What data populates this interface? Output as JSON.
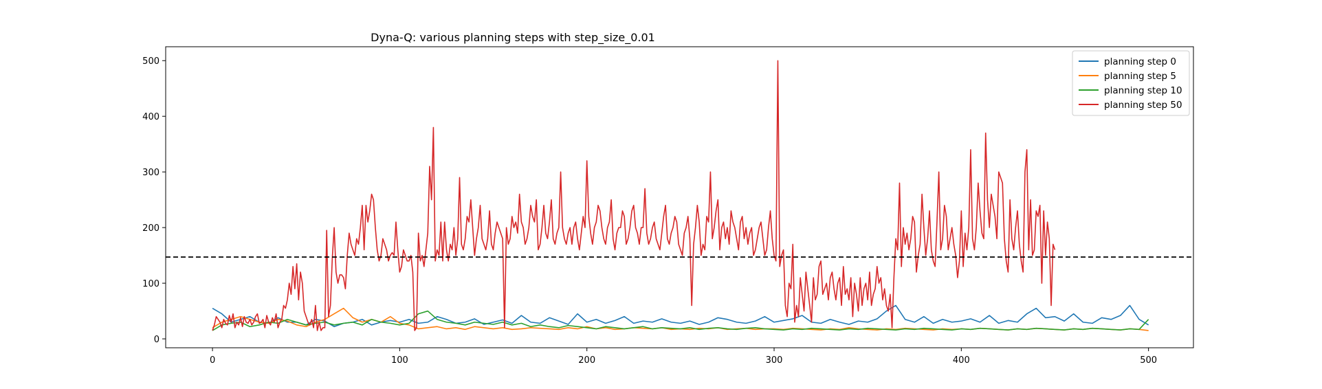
{
  "chart_data": {
    "type": "line",
    "title": "Dyna-Q: various planning steps with step_size_0.01",
    "xlabel": "",
    "ylabel": "",
    "xlim": [
      -25,
      524
    ],
    "ylim": [
      -16,
      525
    ],
    "x_ticks": [
      0,
      100,
      200,
      300,
      400,
      500
    ],
    "y_ticks": [
      0,
      100,
      200,
      300,
      400,
      500
    ],
    "grid": false,
    "legend_position": "top-right",
    "reference_line": {
      "y": 147,
      "style": "dashed",
      "color": "#000000"
    },
    "series": [
      {
        "name": "planning step 0",
        "color": "#1f77b4",
        "x_start": 0,
        "x_step": 5,
        "values": [
          55,
          45,
          30,
          35,
          40,
          30,
          28,
          38,
          30,
          30,
          25,
          35,
          32,
          22,
          28,
          30,
          35,
          25,
          30,
          33,
          30,
          35,
          28,
          30,
          40,
          35,
          28,
          30,
          36,
          26,
          30,
          34,
          28,
          42,
          30,
          28,
          38,
          32,
          26,
          45,
          30,
          35,
          28,
          33,
          40,
          28,
          32,
          30,
          36,
          30,
          28,
          32,
          26,
          30,
          38,
          35,
          30,
          28,
          32,
          40,
          30,
          33,
          36,
          42,
          30,
          28,
          35,
          30,
          26,
          32,
          30,
          36,
          50,
          60,
          35,
          30,
          40,
          28,
          35,
          30,
          32,
          36,
          30,
          42,
          28,
          33,
          30,
          45,
          55,
          38,
          40,
          32,
          45,
          30,
          28,
          38,
          35,
          42,
          60,
          35,
          25
        ]
      },
      {
        "name": "planning step 5",
        "color": "#ff7f0e",
        "x_start": 0,
        "x_step": 5,
        "values": [
          20,
          30,
          35,
          40,
          35,
          30,
          28,
          35,
          32,
          25,
          22,
          30,
          35,
          45,
          55,
          38,
          30,
          35,
          30,
          40,
          28,
          25,
          18,
          20,
          22,
          18,
          20,
          17,
          22,
          20,
          18,
          20,
          17,
          18,
          20,
          19,
          18,
          17,
          20,
          18,
          22,
          18,
          20,
          17,
          18,
          20,
          19,
          18,
          20,
          17,
          18,
          17,
          19,
          18,
          20,
          17,
          18,
          19,
          17,
          18,
          18,
          17,
          19,
          18,
          17,
          16,
          18,
          17,
          20,
          18,
          17,
          16,
          18,
          17,
          19,
          18,
          17,
          16,
          18,
          17,
          18,
          17,
          19,
          18,
          17,
          16,
          18,
          17,
          19,
          18,
          17,
          16,
          18,
          17,
          19,
          18,
          17,
          16,
          18,
          17,
          15
        ]
      },
      {
        "name": "planning step 10",
        "color": "#2ca02c",
        "x_start": 0,
        "x_step": 5,
        "values": [
          15,
          25,
          28,
          30,
          22,
          25,
          30,
          28,
          35,
          30,
          25,
          28,
          30,
          25,
          28,
          30,
          25,
          35,
          30,
          28,
          25,
          28,
          45,
          50,
          35,
          30,
          28,
          25,
          30,
          28,
          26,
          30,
          25,
          28,
          22,
          25,
          22,
          20,
          24,
          22,
          20,
          18,
          22,
          20,
          18,
          20,
          22,
          18,
          20,
          19,
          18,
          20,
          17,
          19,
          20,
          18,
          17,
          19,
          20,
          18,
          17,
          16,
          18,
          17,
          19,
          18,
          17,
          16,
          18,
          17,
          19,
          18,
          17,
          16,
          18,
          17,
          19,
          18,
          17,
          16,
          18,
          17,
          19,
          18,
          17,
          16,
          18,
          17,
          19,
          18,
          17,
          16,
          18,
          17,
          19,
          18,
          17,
          16,
          18,
          17,
          35
        ]
      },
      {
        "name": "planning step 50",
        "color": "#d62728",
        "x_start": 0,
        "x_step": 1,
        "values": [
          15,
          25,
          40,
          35,
          30,
          20,
          35,
          28,
          25,
          42,
          30,
          45,
          20,
          30,
          25,
          38,
          22,
          40,
          30,
          28,
          35,
          25,
          30,
          40,
          45,
          28,
          30,
          35,
          20,
          42,
          30,
          25,
          38,
          30,
          45,
          20,
          30,
          35,
          60,
          55,
          70,
          100,
          80,
          130,
          90,
          135,
          70,
          120,
          100,
          50,
          40,
          30,
          25,
          35,
          20,
          60,
          15,
          30,
          15,
          20,
          20,
          195,
          40,
          60,
          145,
          200,
          120,
          100,
          115,
          115,
          110,
          90,
          150,
          190,
          170,
          160,
          150,
          180,
          170,
          200,
          240,
          160,
          240,
          210,
          230,
          260,
          250,
          200,
          160,
          140,
          150,
          180,
          170,
          160,
          140,
          150,
          155,
          150,
          210,
          160,
          120,
          130,
          160,
          150,
          140,
          140,
          150,
          120,
          15,
          20,
          190,
          140,
          150,
          130,
          160,
          190,
          310,
          250,
          380,
          140,
          160,
          150,
          210,
          140,
          210,
          160,
          140,
          170,
          160,
          200,
          150,
          180,
          290,
          170,
          160,
          180,
          220,
          210,
          250,
          200,
          150,
          180,
          200,
          240,
          180,
          170,
          160,
          180,
          230,
          170,
          160,
          190,
          210,
          200,
          190,
          180,
          20,
          200,
          170,
          180,
          220,
          200,
          210,
          190,
          260,
          210,
          200,
          170,
          180,
          200,
          240,
          220,
          210,
          250,
          160,
          170,
          200,
          240,
          190,
          180,
          210,
          250,
          180,
          170,
          190,
          200,
          300,
          200,
          180,
          170,
          190,
          200,
          170,
          200,
          210,
          180,
          160,
          190,
          220,
          200,
          320,
          220,
          190,
          170,
          200,
          210,
          240,
          230,
          200,
          180,
          170,
          200,
          210,
          250,
          180,
          160,
          190,
          200,
          200,
          230,
          220,
          170,
          180,
          200,
          230,
          240,
          200,
          190,
          170,
          200,
          200,
          270,
          190,
          170,
          180,
          200,
          210,
          180,
          170,
          160,
          190,
          220,
          240,
          180,
          170,
          190,
          200,
          220,
          210,
          170,
          160,
          150,
          190,
          200,
          220,
          180,
          60,
          170,
          200,
          240,
          210,
          150,
          170,
          160,
          220,
          210,
          300,
          180,
          200,
          230,
          250,
          160,
          200,
          210,
          180,
          200,
          170,
          230,
          210,
          200,
          180,
          160,
          210,
          220,
          180,
          200,
          170,
          190,
          200,
          150,
          160,
          180,
          200,
          210,
          180,
          150,
          160,
          200,
          230,
          180,
          150,
          140,
          500,
          130,
          150,
          160,
          60,
          40,
          100,
          90,
          170,
          30,
          60,
          40,
          110,
          80,
          50,
          120,
          90,
          60,
          30,
          110,
          70,
          80,
          130,
          140,
          80,
          90,
          100,
          70,
          110,
          120,
          90,
          70,
          100,
          110,
          60,
          130,
          80,
          90,
          70,
          110,
          40,
          100,
          80,
          50,
          110,
          60,
          90,
          100,
          70,
          120,
          60,
          80,
          90,
          130,
          100,
          110,
          70,
          90,
          60,
          50,
          80,
          20,
          110,
          180,
          160,
          280,
          130,
          200,
          170,
          190,
          160,
          180,
          220,
          210,
          120,
          150,
          170,
          260,
          200,
          150,
          180,
          230,
          160,
          140,
          130,
          210,
          300,
          160,
          180,
          240,
          220,
          160,
          180,
          200,
          170,
          150,
          110,
          140,
          230,
          130,
          190,
          160,
          200,
          340,
          180,
          160,
          200,
          280,
          230,
          190,
          180,
          370,
          250,
          200,
          260,
          240,
          220,
          180,
          300,
          290,
          280,
          180,
          140,
          120,
          250,
          180,
          160,
          200,
          230,
          170,
          140,
          120,
          300,
          340,
          160,
          250,
          150,
          160,
          230,
          220,
          240,
          100,
          230,
          150,
          210,
          180,
          60,
          170,
          160
        ]
      }
    ]
  },
  "legend": {
    "items": [
      {
        "label": "planning step 0",
        "color": "#1f77b4"
      },
      {
        "label": "planning step 5",
        "color": "#ff7f0e"
      },
      {
        "label": "planning step 10",
        "color": "#2ca02c"
      },
      {
        "label": "planning step 50",
        "color": "#d62728"
      }
    ]
  }
}
